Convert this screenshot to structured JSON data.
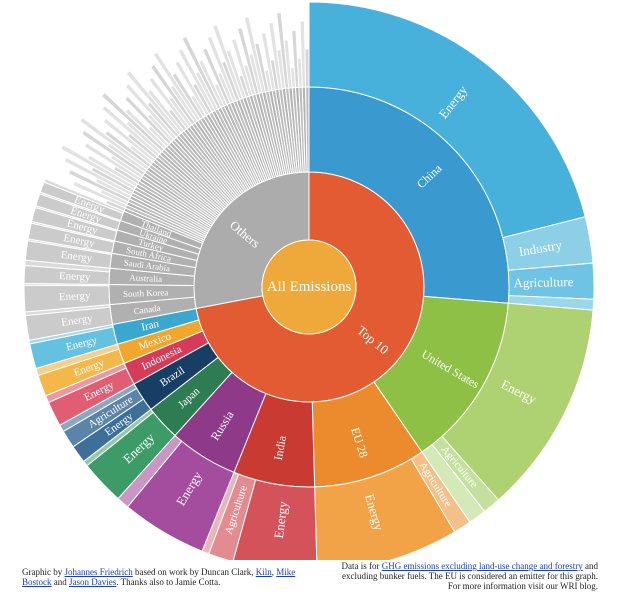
{
  "chart_data": {
    "type": "sunburst",
    "center": {
      "name": "All Emissions",
      "color": "#eea93a"
    },
    "groups": [
      {
        "name": "Top 10",
        "color": "#e25b32",
        "value": 72,
        "countries": [
          {
            "name": "China",
            "value": 26,
            "color": "#3a9ad0",
            "sectors": [
              {
                "name": "Energy",
                "value": 20.8,
                "color": "#48b1db"
              },
              {
                "name": "Industry",
                "value": 2.6,
                "color": "#8ccfe7"
              },
              {
                "name": "Agriculture",
                "value": 2.0,
                "color": "#6fc3e5"
              },
              {
                "name": "",
                "value": 0.6,
                "color": "#9ad6ec"
              }
            ]
          },
          {
            "name": "United States",
            "value": 14,
            "color": "#8ec045",
            "sectors": [
              {
                "name": "Energy",
                "value": 12.0,
                "color": "#aed271"
              },
              {
                "name": "Agriculture",
                "value": 1.0,
                "color": "#c4dfa0"
              },
              {
                "name": "",
                "value": 1.0,
                "color": "#d4e8b8"
              }
            ]
          },
          {
            "name": "EU 28",
            "value": 9,
            "color": "#ec8a2e",
            "sectors": [
              {
                "name": "Agriculture",
                "value": 1.0,
                "color": "#f3c08a"
              },
              {
                "name": "Energy",
                "value": 8.0,
                "color": "#f2a348"
              }
            ]
          },
          {
            "name": "India",
            "value": 6.5,
            "color": "#c83a32",
            "sectors": [
              {
                "name": "Energy",
                "value": 4.7,
                "color": "#d4525a"
              },
              {
                "name": "Agriculture",
                "value": 1.4,
                "color": "#e28c92"
              },
              {
                "name": "",
                "value": 0.4,
                "color": "#eab4b8"
              }
            ]
          },
          {
            "name": "Russia",
            "value": 5.5,
            "color": "#8e3a88",
            "sectors": [
              {
                "name": "Energy",
                "value": 4.8,
                "color": "#a44d9e"
              },
              {
                "name": "",
                "value": 0.7,
                "color": "#c996c5"
              }
            ]
          },
          {
            "name": "Japan",
            "value": 2.8,
            "color": "#2e7d52",
            "sectors": [
              {
                "name": "Energy",
                "value": 2.5,
                "color": "#3d9b68"
              },
              {
                "name": "",
                "value": 0.3,
                "color": "#93c9a9"
              }
            ]
          },
          {
            "name": "Brazil",
            "value": 2.4,
            "color": "#173f66",
            "sectors": [
              {
                "name": "Energy",
                "value": 1.0,
                "color": "#3e6f98"
              },
              {
                "name": "Agriculture",
                "value": 1.0,
                "color": "#5b84a8"
              },
              {
                "name": "",
                "value": 0.4,
                "color": "#8aa8c4"
              }
            ]
          },
          {
            "name": "Indonesia",
            "value": 1.8,
            "color": "#d53c5a",
            "sectors": [
              {
                "name": "Energy",
                "value": 1.4,
                "color": "#e05d74"
              },
              {
                "name": "",
                "value": 0.4,
                "color": "#ea97a6"
              }
            ]
          },
          {
            "name": "Mexico",
            "value": 1.6,
            "color": "#f0a72e",
            "sectors": [
              {
                "name": "Energy",
                "value": 1.2,
                "color": "#f4b84a"
              },
              {
                "name": "",
                "value": 0.4,
                "color": "#f6d08a"
              }
            ]
          },
          {
            "name": "Iran",
            "value": 1.6,
            "color": "#3aa7cf",
            "sectors": [
              {
                "name": "Energy",
                "value": 1.4,
                "color": "#66c0df"
              },
              {
                "name": "",
                "value": 0.2,
                "color": "#a5d9ec"
              }
            ]
          }
        ]
      },
      {
        "name": "Others",
        "value": 28,
        "color": "#acacac",
        "countries": [
          {
            "name": "Canada",
            "value": 1.6,
            "color": "#b0b0b0",
            "sectors": [
              {
                "name": "Energy",
                "value": 1.4,
                "color": "#cbcbcb"
              },
              {
                "name": "",
                "value": 0.2,
                "color": "#dadada"
              }
            ]
          },
          {
            "name": "South Korea",
            "value": 1.6,
            "color": "#b0b0b0",
            "sectors": [
              {
                "name": "Energy",
                "value": 1.5,
                "color": "#cbcbcb"
              },
              {
                "name": "",
                "value": 0.1,
                "color": "#dadada"
              }
            ]
          },
          {
            "name": "Australia",
            "value": 1.3,
            "color": "#b0b0b0",
            "sectors": [
              {
                "name": "Energy",
                "value": 1.0,
                "color": "#cbcbcb"
              },
              {
                "name": "",
                "value": 0.3,
                "color": "#dadada"
              }
            ]
          },
          {
            "name": "Saudi Arabia",
            "value": 1.2,
            "color": "#b0b0b0",
            "sectors": [
              {
                "name": "Energy",
                "value": 1.1,
                "color": "#cbcbcb"
              },
              {
                "name": "",
                "value": 0.1,
                "color": "#dadada"
              }
            ]
          },
          {
            "name": "South Africa",
            "value": 1.0,
            "color": "#b0b0b0",
            "sectors": [
              {
                "name": "Energy",
                "value": 0.9,
                "color": "#cbcbcb"
              },
              {
                "name": "",
                "value": 0.1,
                "color": "#dadada"
              }
            ]
          },
          {
            "name": "Turkey",
            "value": 0.9,
            "color": "#b0b0b0",
            "sectors": [
              {
                "name": "Energy",
                "value": 0.8,
                "color": "#cbcbcb"
              },
              {
                "name": "",
                "value": 0.1,
                "color": "#dadada"
              }
            ]
          },
          {
            "name": "Ukraine",
            "value": 0.8,
            "color": "#b0b0b0",
            "sectors": [
              {
                "name": "Energy",
                "value": 0.7,
                "color": "#cbcbcb"
              },
              {
                "name": "",
                "value": 0.1,
                "color": "#dadada"
              }
            ]
          },
          {
            "name": "Thailand",
            "value": 0.8,
            "color": "#b0b0b0",
            "sectors": [
              {
                "name": "Energy",
                "value": 0.6,
                "color": "#cbcbcb"
              },
              {
                "name": "",
                "value": 0.2,
                "color": "#dadada"
              }
            ]
          },
          {
            "name": "",
            "value": 18.8,
            "color": "#b8b8b8",
            "many": true,
            "sectors": []
          }
        ]
      }
    ]
  },
  "credits": {
    "left": {
      "prefix": "Graphic by ",
      "author": "Johannes Friedrich",
      "mid1": " based on work by Duncan Clark, ",
      "kiln": "Kiln",
      "sep1": ", ",
      "bostock": "Mike Bostock",
      "and": " and ",
      "davies": "Jason Davies",
      "suffix": ". Thanks also to Jamie Cotta."
    },
    "right": {
      "prefix": "Data is for ",
      "link": "GHG emissions excluding land-use change and forestry",
      "suffix": " and excluding bunker fuels. The EU is considered an emitter for this graph. For more information visit our WRI blog."
    }
  }
}
